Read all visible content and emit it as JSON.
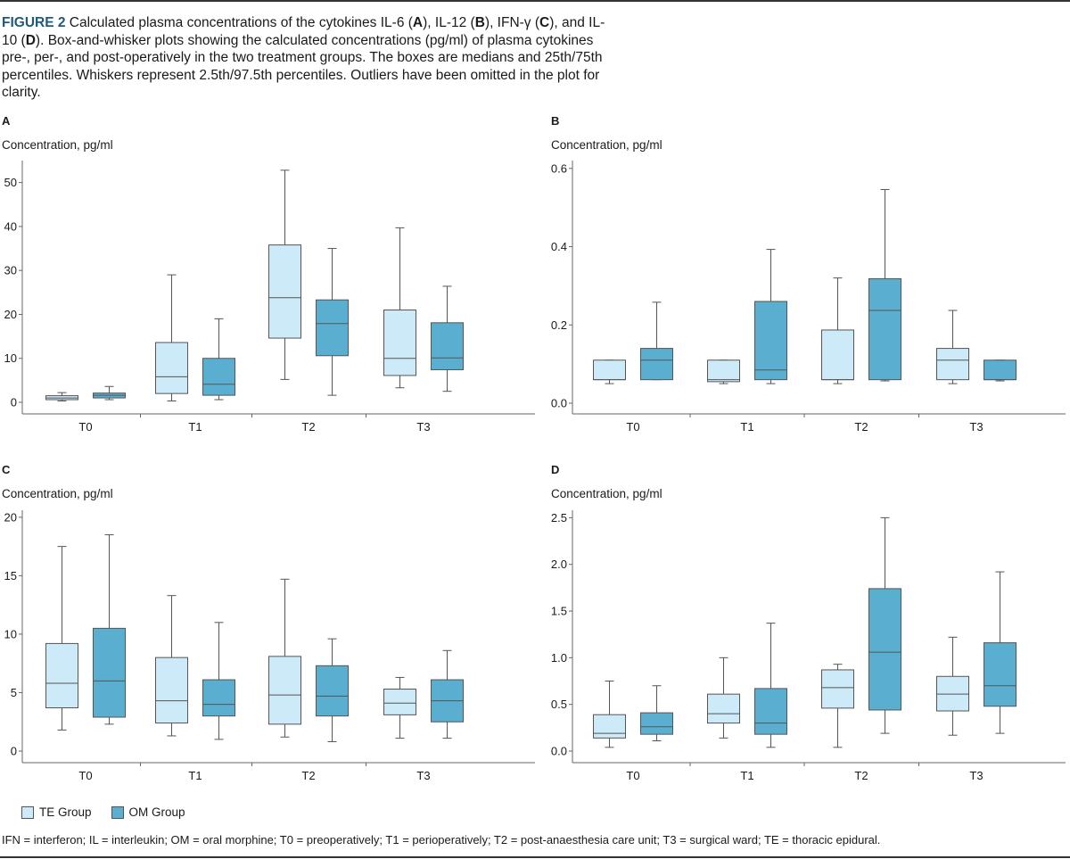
{
  "caption": {
    "figure_label": "FIGURE 2",
    "segments": [
      {
        "t": " Calculated plasma concentrations of the cytokines IL-6 (",
        "b": false
      },
      {
        "t": "A",
        "b": true
      },
      {
        "t": "), IL-12 (",
        "b": false
      },
      {
        "t": "B",
        "b": true
      },
      {
        "t": "), IFN-γ (",
        "b": false
      },
      {
        "t": "C",
        "b": true
      },
      {
        "t": "), and IL-10 (",
        "b": false
      },
      {
        "t": "D",
        "b": true
      },
      {
        "t": "). Box-and-whisker plots showing the calculated concentrations (pg/ml) of plasma cytokines pre-, per-, and post-operatively in the two treatment groups. The boxes are medians and 25th/75th percentiles. Whiskers represent 2.5th/97.5th percentiles. Outliers have been omitted in the plot for clarity.",
        "b": false
      }
    ]
  },
  "colors": {
    "te": "#cdeaf8",
    "om": "#5aaed0",
    "stroke": "#555555",
    "axis": "#666666"
  },
  "legend": {
    "items": [
      {
        "label": "TE Group",
        "color": "#cdeaf8"
      },
      {
        "label": "OM Group",
        "color": "#5aaed0"
      }
    ]
  },
  "footnote": "IFN = interferon; IL = interleukin; OM = oral morphine; T0 = preoperatively; T1 = perioperatively; T2 = post-anaesthesia care unit; T3 = surgical ward; TE = thoracic epidural.",
  "chart_data": [
    {
      "panel": "A",
      "type": "box",
      "ylabel": "Concentration, pg/ml",
      "categories": [
        "T0",
        "T1",
        "T2",
        "T3"
      ],
      "ylim": [
        0,
        55
      ],
      "yticks": [
        0,
        10,
        20,
        30,
        40,
        50
      ],
      "series": [
        {
          "name": "TE Group",
          "boxes": [
            {
              "whisker_low": 0.3,
              "q1": 0.6,
              "median": 1.0,
              "q3": 1.5,
              "whisker_high": 2.2
            },
            {
              "whisker_low": 0.3,
              "q1": 2.0,
              "median": 5.8,
              "q3": 13.6,
              "whisker_high": 29.0
            },
            {
              "whisker_low": 5.2,
              "q1": 14.6,
              "median": 23.8,
              "q3": 35.8,
              "whisker_high": 52.8
            },
            {
              "whisker_low": 3.3,
              "q1": 6.1,
              "median": 10.0,
              "q3": 21.0,
              "whisker_high": 39.7
            }
          ]
        },
        {
          "name": "OM Group",
          "boxes": [
            {
              "whisker_low": 0.6,
              "q1": 1.0,
              "median": 1.6,
              "q3": 2.1,
              "whisker_high": 3.6
            },
            {
              "whisker_low": 0.6,
              "q1": 1.6,
              "median": 4.1,
              "q3": 10.0,
              "whisker_high": 19.0
            },
            {
              "whisker_low": 1.6,
              "q1": 10.6,
              "median": 17.9,
              "q3": 23.3,
              "whisker_high": 35.0
            },
            {
              "whisker_low": 2.5,
              "q1": 7.4,
              "median": 10.1,
              "q3": 18.1,
              "whisker_high": 26.4
            }
          ]
        }
      ]
    },
    {
      "panel": "B",
      "type": "box",
      "ylabel": "Concentration, pg/ml",
      "categories": [
        "T0",
        "T1",
        "T2",
        "T3"
      ],
      "ylim": [
        0,
        0.62
      ],
      "yticks": [
        0.0,
        0.2,
        0.4,
        0.6
      ],
      "tick_decimals": 1,
      "series": [
        {
          "name": "TE Group",
          "boxes": [
            {
              "whisker_low": 0.05,
              "q1": 0.06,
              "median": 0.06,
              "q3": 0.11,
              "whisker_high": 0.11
            },
            {
              "whisker_low": 0.05,
              "q1": 0.055,
              "median": 0.06,
              "q3": 0.11,
              "whisker_high": 0.11
            },
            {
              "whisker_low": 0.05,
              "q1": 0.06,
              "median": 0.06,
              "q3": 0.187,
              "whisker_high": 0.32
            },
            {
              "whisker_low": 0.05,
              "q1": 0.06,
              "median": 0.11,
              "q3": 0.14,
              "whisker_high": 0.237
            }
          ]
        },
        {
          "name": "OM Group",
          "boxes": [
            {
              "whisker_low": 0.06,
              "q1": 0.06,
              "median": 0.11,
              "q3": 0.14,
              "whisker_high": 0.258
            },
            {
              "whisker_low": 0.05,
              "q1": 0.06,
              "median": 0.085,
              "q3": 0.26,
              "whisker_high": 0.393
            },
            {
              "whisker_low": 0.057,
              "q1": 0.06,
              "median": 0.237,
              "q3": 0.318,
              "whisker_high": 0.546
            },
            {
              "whisker_low": 0.057,
              "q1": 0.06,
              "median": 0.06,
              "q3": 0.11,
              "whisker_high": 0.11
            }
          ]
        }
      ]
    },
    {
      "panel": "C",
      "type": "box",
      "ylabel": "Concentration, pg/ml",
      "categories": [
        "T0",
        "T1",
        "T2",
        "T3"
      ],
      "ylim": [
        0,
        20.6
      ],
      "yticks": [
        0,
        5,
        10,
        15,
        20
      ],
      "series": [
        {
          "name": "TE Group",
          "boxes": [
            {
              "whisker_low": 1.8,
              "q1": 3.7,
              "median": 5.8,
              "q3": 9.2,
              "whisker_high": 17.5
            },
            {
              "whisker_low": 1.3,
              "q1": 2.4,
              "median": 4.3,
              "q3": 8.0,
              "whisker_high": 13.3
            },
            {
              "whisker_low": 1.2,
              "q1": 2.3,
              "median": 4.8,
              "q3": 8.1,
              "whisker_high": 14.7
            },
            {
              "whisker_low": 1.1,
              "q1": 3.1,
              "median": 4.1,
              "q3": 5.3,
              "whisker_high": 6.3
            }
          ]
        },
        {
          "name": "OM Group",
          "boxes": [
            {
              "whisker_low": 2.3,
              "q1": 2.9,
              "median": 6.0,
              "q3": 10.5,
              "whisker_high": 18.5
            },
            {
              "whisker_low": 1.0,
              "q1": 3.0,
              "median": 4.0,
              "q3": 6.1,
              "whisker_high": 11.0
            },
            {
              "whisker_low": 0.8,
              "q1": 3.0,
              "median": 4.7,
              "q3": 7.3,
              "whisker_high": 9.6
            },
            {
              "whisker_low": 1.1,
              "q1": 2.5,
              "median": 4.3,
              "q3": 6.1,
              "whisker_high": 8.6
            }
          ]
        }
      ]
    },
    {
      "panel": "D",
      "type": "box",
      "ylabel": "Concentration, pg/ml",
      "categories": [
        "T0",
        "T1",
        "T2",
        "T3"
      ],
      "ylim": [
        0,
        2.58
      ],
      "yticks": [
        0.0,
        0.5,
        1.0,
        1.5,
        2.0,
        2.5
      ],
      "tick_decimals": 1,
      "series": [
        {
          "name": "TE Group",
          "boxes": [
            {
              "whisker_low": 0.04,
              "q1": 0.14,
              "median": 0.19,
              "q3": 0.39,
              "whisker_high": 0.75
            },
            {
              "whisker_low": 0.14,
              "q1": 0.3,
              "median": 0.4,
              "q3": 0.61,
              "whisker_high": 1.0
            },
            {
              "whisker_low": 0.04,
              "q1": 0.46,
              "median": 0.68,
              "q3": 0.87,
              "whisker_high": 0.93
            },
            {
              "whisker_low": 0.17,
              "q1": 0.43,
              "median": 0.61,
              "q3": 0.8,
              "whisker_high": 1.22
            }
          ]
        },
        {
          "name": "OM Group",
          "boxes": [
            {
              "whisker_low": 0.11,
              "q1": 0.18,
              "median": 0.26,
              "q3": 0.41,
              "whisker_high": 0.7
            },
            {
              "whisker_low": 0.04,
              "q1": 0.18,
              "median": 0.3,
              "q3": 0.67,
              "whisker_high": 1.37
            },
            {
              "whisker_low": 0.19,
              "q1": 0.44,
              "median": 1.06,
              "q3": 1.74,
              "whisker_high": 2.5
            },
            {
              "whisker_low": 0.19,
              "q1": 0.48,
              "median": 0.7,
              "q3": 1.16,
              "whisker_high": 1.92
            }
          ]
        }
      ]
    }
  ]
}
